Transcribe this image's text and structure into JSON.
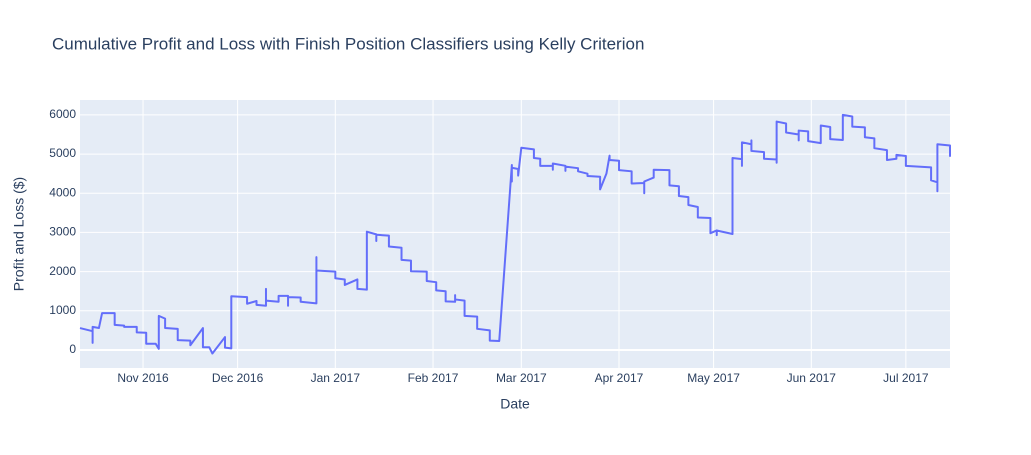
{
  "chart_data": {
    "type": "line",
    "title": "Cumulative Profit and Loss with Finish Position Classifiers using Kelly Criterion",
    "x_label": "Date",
    "y_label": "Profit and Loss ($)",
    "color": "#636efa",
    "grid": true,
    "xlim": [
      "2016-10-12",
      "2017-07-15"
    ],
    "ylim": [
      -460,
      6380
    ],
    "yticks": [
      0,
      1000,
      2000,
      3000,
      4000,
      5000,
      6000
    ],
    "xticks": [
      {
        "value": "2016-11-01",
        "label": "Nov 2016"
      },
      {
        "value": "2016-12-01",
        "label": "Dec 2016"
      },
      {
        "value": "2017-01-01",
        "label": "Jan 2017"
      },
      {
        "value": "2017-02-01",
        "label": "Feb 2017"
      },
      {
        "value": "2017-03-01",
        "label": "Mar 2017"
      },
      {
        "value": "2017-04-01",
        "label": "Apr 2017"
      },
      {
        "value": "2017-05-01",
        "label": "May 2017"
      },
      {
        "value": "2017-06-01",
        "label": "Jun 2017"
      },
      {
        "value": "2017-07-01",
        "label": "Jul 2017"
      }
    ],
    "x": [
      "2016-10-12",
      "2016-10-16",
      "2016-10-16",
      "2016-10-16",
      "2016-10-18",
      "2016-10-19",
      "2016-10-23",
      "2016-10-23",
      "2016-10-26",
      "2016-10-26",
      "2016-10-30",
      "2016-10-30",
      "2016-11-02",
      "2016-11-02",
      "2016-11-05",
      "2016-11-06",
      "2016-11-06",
      "2016-11-08",
      "2016-11-08",
      "2016-11-12",
      "2016-11-12",
      "2016-11-16",
      "2016-11-16",
      "2016-11-20",
      "2016-11-20",
      "2016-11-22",
      "2016-11-23",
      "2016-11-27",
      "2016-11-27",
      "2016-11-29",
      "2016-11-29",
      "2016-12-04",
      "2016-12-04",
      "2016-12-07",
      "2016-12-07",
      "2016-12-10",
      "2016-12-10",
      "2016-12-10",
      "2016-12-14",
      "2016-12-14",
      "2016-12-17",
      "2016-12-17",
      "2016-12-17",
      "2016-12-21",
      "2016-12-21",
      "2016-12-26",
      "2016-12-26",
      "2016-12-26",
      "2017-01-01",
      "2017-01-01",
      "2017-01-04",
      "2017-01-04",
      "2017-01-08",
      "2017-01-08",
      "2017-01-11",
      "2017-01-11",
      "2017-01-14",
      "2017-01-14",
      "2017-01-14",
      "2017-01-18",
      "2017-01-18",
      "2017-01-22",
      "2017-01-22",
      "2017-01-25",
      "2017-01-25",
      "2017-01-30",
      "2017-01-30",
      "2017-02-02",
      "2017-02-02",
      "2017-02-05",
      "2017-02-05",
      "2017-02-08",
      "2017-02-08",
      "2017-02-08",
      "2017-02-11",
      "2017-02-11",
      "2017-02-15",
      "2017-02-15",
      "2017-02-19",
      "2017-02-19",
      "2017-02-22",
      "2017-02-26",
      "2017-02-26",
      "2017-02-26",
      "2017-02-28",
      "2017-02-28",
      "2017-03-01",
      "2017-03-05",
      "2017-03-05",
      "2017-03-07",
      "2017-03-07",
      "2017-03-11",
      "2017-03-11",
      "2017-03-11",
      "2017-03-15",
      "2017-03-15",
      "2017-03-15",
      "2017-03-19",
      "2017-03-19",
      "2017-03-22",
      "2017-03-22",
      "2017-03-26",
      "2017-03-26",
      "2017-03-28",
      "2017-03-29",
      "2017-03-29",
      "2017-04-01",
      "2017-04-01",
      "2017-04-05",
      "2017-04-05",
      "2017-04-09",
      "2017-04-09",
      "2017-04-09",
      "2017-04-12",
      "2017-04-12",
      "2017-04-17",
      "2017-04-17",
      "2017-04-20",
      "2017-04-20",
      "2017-04-23",
      "2017-04-23",
      "2017-04-26",
      "2017-04-26",
      "2017-04-30",
      "2017-04-30",
      "2017-05-02",
      "2017-05-02",
      "2017-05-02",
      "2017-05-07",
      "2017-05-07",
      "2017-05-10",
      "2017-05-10",
      "2017-05-10",
      "2017-05-13",
      "2017-05-13",
      "2017-05-13",
      "2017-05-17",
      "2017-05-17",
      "2017-05-21",
      "2017-05-21",
      "2017-05-21",
      "2017-05-24",
      "2017-05-24",
      "2017-05-28",
      "2017-05-28",
      "2017-05-28",
      "2017-05-31",
      "2017-05-31",
      "2017-06-04",
      "2017-06-04",
      "2017-06-07",
      "2017-06-07",
      "2017-06-11",
      "2017-06-11",
      "2017-06-14",
      "2017-06-14",
      "2017-06-18",
      "2017-06-18",
      "2017-06-21",
      "2017-06-21",
      "2017-06-25",
      "2017-06-25",
      "2017-06-28",
      "2017-06-28",
      "2017-07-01",
      "2017-07-01",
      "2017-07-09",
      "2017-07-09",
      "2017-07-11",
      "2017-07-11",
      "2017-07-11",
      "2017-07-15",
      "2017-07-15"
    ],
    "values": [
      560,
      480,
      180,
      590,
      560,
      940,
      940,
      640,
      620,
      590,
      590,
      450,
      440,
      160,
      160,
      30,
      870,
      800,
      560,
      540,
      250,
      240,
      120,
      560,
      70,
      70,
      -90,
      330,
      60,
      40,
      1370,
      1350,
      1180,
      1250,
      1150,
      1130,
      1560,
      1260,
      1230,
      1380,
      1380,
      1130,
      1350,
      1340,
      1230,
      1190,
      2370,
      2030,
      2000,
      1830,
      1800,
      1660,
      1800,
      1560,
      1540,
      3020,
      2950,
      2780,
      2940,
      2920,
      2640,
      2610,
      2300,
      2280,
      2010,
      2000,
      1760,
      1730,
      1520,
      1500,
      1240,
      1230,
      1400,
      1290,
      1260,
      870,
      850,
      540,
      500,
      240,
      230,
      4720,
      4300,
      4650,
      4620,
      4450,
      5160,
      5120,
      4900,
      4880,
      4700,
      4700,
      4600,
      4760,
      4700,
      4570,
      4680,
      4640,
      4560,
      4500,
      4440,
      4420,
      4100,
      4500,
      4960,
      4850,
      4830,
      4590,
      4560,
      4250,
      4260,
      4000,
      4300,
      4400,
      4600,
      4590,
      4200,
      4180,
      3930,
      3900,
      3700,
      3650,
      3380,
      3370,
      2980,
      3050,
      2930,
      3050,
      2960,
      4900,
      4870,
      4700,
      5300,
      5250,
      5350,
      5080,
      5050,
      4880,
      4860,
      4780,
      5830,
      5780,
      5550,
      5500,
      5350,
      5600,
      5580,
      5330,
      5280,
      5730,
      5690,
      5380,
      5360,
      6000,
      5960,
      5700,
      5680,
      5430,
      5400,
      5150,
      5100,
      4850,
      4880,
      4980,
      4950,
      4700,
      4660,
      4330,
      4280,
      4050,
      5250,
      5220,
      4930
    ]
  }
}
